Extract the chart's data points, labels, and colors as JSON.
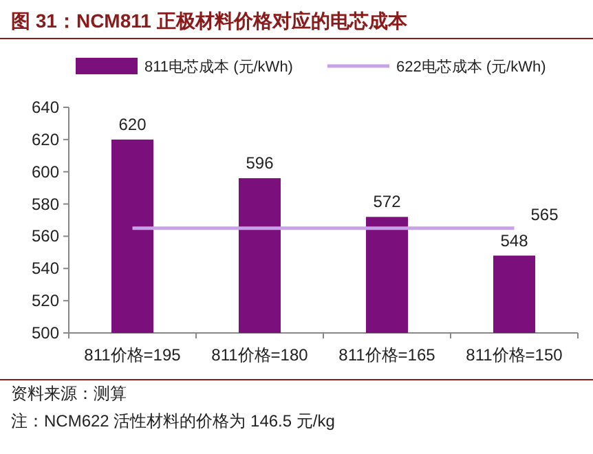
{
  "chart_data": {
    "type": "bar",
    "title": "图 31：NCM811 正极材料价格对应的电芯成本",
    "categories": [
      "811价格=195",
      "811价格=180",
      "811价格=165",
      "811价格=150"
    ],
    "series": [
      {
        "name": "811电芯成本 (元/kWh)",
        "color": "#7b0f7b",
        "values": [
          620,
          596,
          572,
          548
        ],
        "value_labels": [
          "620",
          "596",
          "572",
          "548"
        ]
      },
      {
        "name": "622电芯成本 (元/kWh)",
        "type": "line",
        "color": "#c8a2e8",
        "values": [
          565,
          565,
          565,
          565
        ],
        "value_labels": [
          null,
          null,
          null,
          "565"
        ]
      }
    ],
    "ylim": [
      500,
      640
    ],
    "yticks": [
      500,
      520,
      540,
      560,
      580,
      600,
      620,
      640
    ],
    "legend": "top",
    "annotations": [
      "资料来源：测算",
      "注：NCM622 活性材料的价格为 146.5 元/kg"
    ]
  }
}
